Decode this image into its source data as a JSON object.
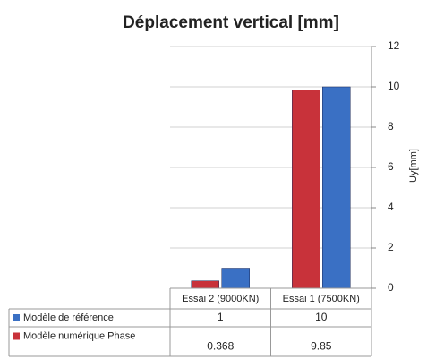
{
  "chart_data": {
    "type": "bar",
    "title": "Déplacement vertical [mm]",
    "y_label": "Uy[mm]",
    "categories": [
      "Essai 2 (9000KN)",
      "Essai 1 (7500KN)"
    ],
    "series": [
      {
        "name": "Modèle de référence",
        "color": "#3a70c4",
        "values": [
          1,
          10
        ]
      },
      {
        "name": "Modèle numérique Phase",
        "color": "#c8323a",
        "values": [
          0.368,
          9.85
        ]
      }
    ],
    "ylim": [
      0,
      12
    ],
    "yticks": [
      0,
      2,
      4,
      6,
      8,
      10,
      12
    ],
    "grid": true,
    "y_axis_side": "right",
    "data_table": true
  }
}
